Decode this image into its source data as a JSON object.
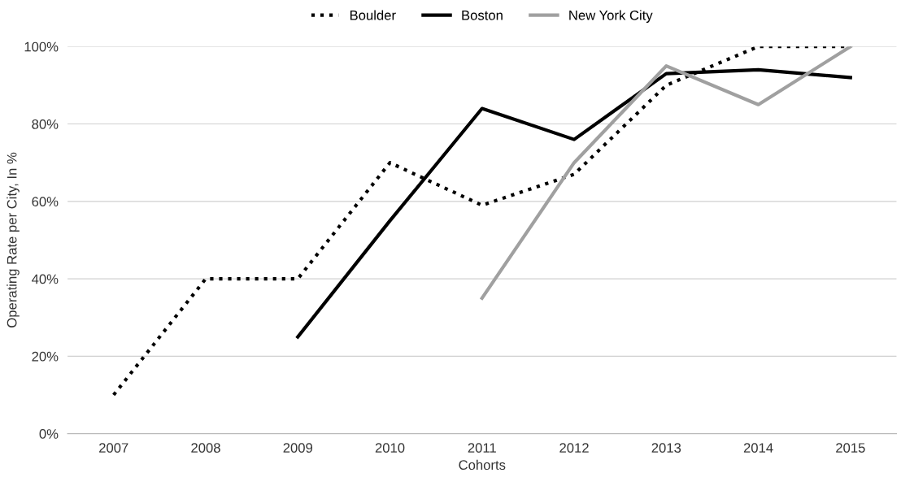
{
  "chart_data": {
    "type": "line",
    "xlabel": "Cohorts",
    "ylabel": "Operating Rate per City, In %",
    "categories": [
      "2007",
      "2008",
      "2009",
      "2010",
      "2011",
      "2012",
      "2013",
      "2014",
      "2015"
    ],
    "series": [
      {
        "name": "Boulder",
        "color": "#000000",
        "line_style": "dotted",
        "values": [
          10,
          40,
          40,
          70,
          59,
          67,
          90,
          100,
          100
        ]
      },
      {
        "name": "Boston",
        "color": "#000000",
        "line_style": "solid",
        "values": [
          null,
          null,
          25,
          55,
          84,
          76,
          93,
          94,
          92
        ]
      },
      {
        "name": "New York City",
        "color": "#a0a0a0",
        "line_style": "solid",
        "values": [
          null,
          null,
          null,
          null,
          35,
          70,
          95,
          85,
          100
        ]
      }
    ],
    "ylim": [
      0,
      100
    ],
    "yticks": [
      {
        "value": 0,
        "label": "0%"
      },
      {
        "value": 20,
        "label": "20%"
      },
      {
        "value": 40,
        "label": "40%"
      },
      {
        "value": 60,
        "label": "60%"
      },
      {
        "value": 80,
        "label": "80%"
      },
      {
        "value": 100,
        "label": "100%"
      }
    ],
    "grid": "y",
    "legend": "top",
    "marker": "none"
  }
}
